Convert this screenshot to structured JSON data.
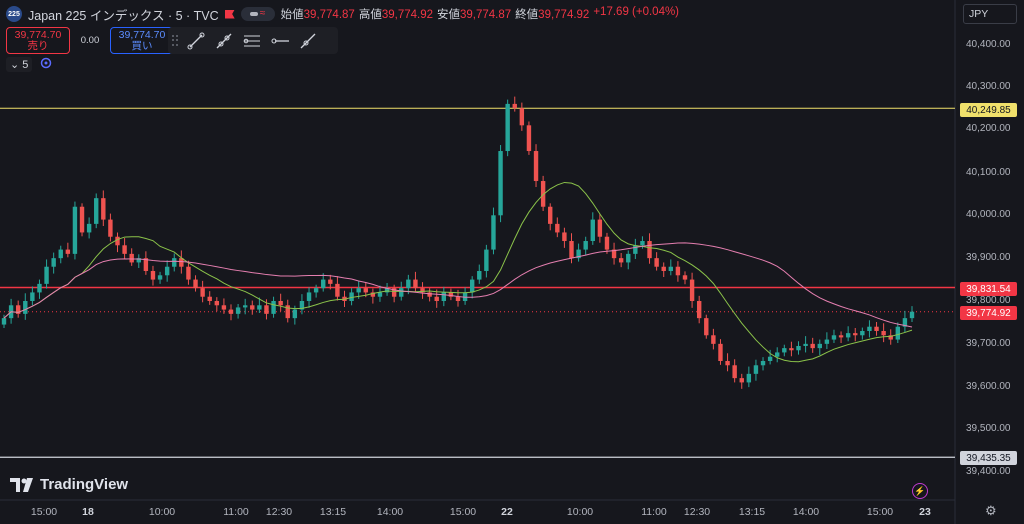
{
  "header": {
    "symbol_badge": "225",
    "title": "Japan 225 インデックス · 5 · TVC",
    "ohlc": [
      {
        "k": "始値",
        "v": "39,774.87"
      },
      {
        "k": "高値",
        "v": "39,774.92"
      },
      {
        "k": "安値",
        "v": "39,774.87"
      },
      {
        "k": "終値",
        "v": "39,774.92"
      }
    ],
    "change": "+17.69 (+0.04%)"
  },
  "trade": {
    "sell_price": "39,774.70",
    "sell_label": "売り",
    "spread": "0.00",
    "buy_price": "39,774.70",
    "buy_label": "買い"
  },
  "interval": {
    "value": "5"
  },
  "currency": "JPY",
  "price_axis": [
    "40,400.00",
    "40,300.00",
    "40,200.00",
    "40,100.00",
    "40,000.00",
    "39,900.00",
    "39,800.00",
    "39,700.00",
    "39,600.00",
    "39,500.00",
    "39,400.00"
  ],
  "price_tags": {
    "yellow": "40,249.85",
    "red": "39,831.54",
    "current": "39,774.92",
    "white": "39,435.35"
  },
  "time_axis": [
    "15:00",
    "18",
    "10:00",
    "11:00",
    "12:30",
    "13:15",
    "14:00",
    "15:00",
    "22",
    "10:00",
    "11:00",
    "12:30",
    "13:15",
    "14:00",
    "15:00",
    "23"
  ],
  "logo_text": "TradingView",
  "colors": {
    "up": "#26a69a",
    "down": "#ef5350",
    "yellow_line": "#f0e06b",
    "red_line": "#f23645",
    "white_line": "#d1d4dc",
    "ma_green": "#8bc34a",
    "ma_pink": "#e57fb0"
  },
  "chart_data": {
    "type": "candlestick",
    "ylim": [
      39400,
      40450
    ],
    "horizontal_lines": [
      40249.85,
      39831.54,
      39435.35
    ],
    "current_price": 39774.92,
    "closes": [
      39760,
      39790,
      39770,
      39800,
      39820,
      39840,
      39880,
      39900,
      39920,
      39910,
      40020,
      39960,
      39980,
      40040,
      39990,
      39950,
      39930,
      39910,
      39890,
      39900,
      39870,
      39850,
      39860,
      39880,
      39900,
      39880,
      39850,
      39830,
      39810,
      39800,
      39790,
      39780,
      39770,
      39785,
      39790,
      39780,
      39790,
      39770,
      39800,
      39790,
      39760,
      39780,
      39800,
      39820,
      39830,
      39850,
      39840,
      39810,
      39800,
      39820,
      39830,
      39820,
      39810,
      39820,
      39830,
      39810,
      39830,
      39850,
      39830,
      39820,
      39810,
      39800,
      39820,
      39810,
      39800,
      39820,
      39850,
      39870,
      39920,
      40000,
      40150,
      40260,
      40250,
      40210,
      40150,
      40080,
      40020,
      39980,
      39960,
      39940,
      39900,
      39920,
      39940,
      39990,
      39950,
      39920,
      39900,
      39890,
      39910,
      39930,
      39940,
      39900,
      39880,
      39870,
      39880,
      39860,
      39850,
      39800,
      39760,
      39720,
      39700,
      39660,
      39650,
      39620,
      39610,
      39630,
      39650,
      39660,
      39670,
      39680,
      39690,
      39685,
      39695,
      39700,
      39690,
      39700,
      39710,
      39720,
      39715,
      39725,
      39720,
      39730,
      39740,
      39730,
      39720,
      39710,
      39740,
      39760,
      39775
    ]
  }
}
